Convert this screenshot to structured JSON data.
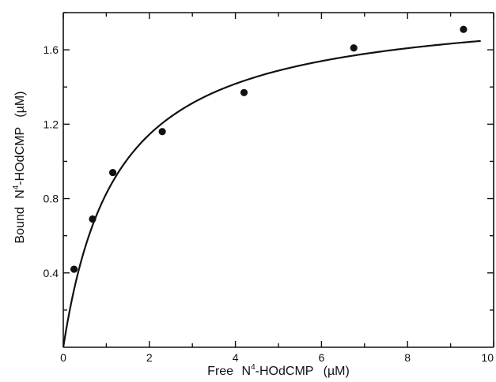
{
  "chart_data": {
    "type": "scatter",
    "title": "",
    "xlabel": {
      "prefix": "Free",
      "base": "N",
      "sup": "4",
      "rest": "-HOdCMP",
      "unit": "(µM)"
    },
    "ylabel": {
      "prefix": "Bound",
      "base": "N",
      "sup": "4",
      "rest": "-HOdCMP",
      "unit": "(µM)"
    },
    "xlim": [
      0,
      10
    ],
    "ylim": [
      0,
      1.8
    ],
    "xticks": [
      0,
      2,
      4,
      6,
      8,
      10
    ],
    "xtick_labels": [
      "0",
      "2",
      "4",
      "6",
      "8",
      "10"
    ],
    "yticks": [
      0.4,
      0.8,
      1.2,
      1.6
    ],
    "ytick_labels": [
      "0.4",
      "0.8",
      "1.2",
      "1.6"
    ],
    "grid": false,
    "series": [
      {
        "kind": "points",
        "x": [
          0.25,
          0.68,
          1.15,
          2.3,
          4.2,
          6.75,
          9.3
        ],
        "y": [
          0.42,
          0.69,
          0.94,
          1.16,
          1.37,
          1.61,
          1.71
        ]
      },
      {
        "kind": "fitted-curve",
        "model": "hyperbolic",
        "bmax": 1.86,
        "kd": 1.25,
        "x_range": [
          0,
          9.7
        ]
      }
    ]
  }
}
